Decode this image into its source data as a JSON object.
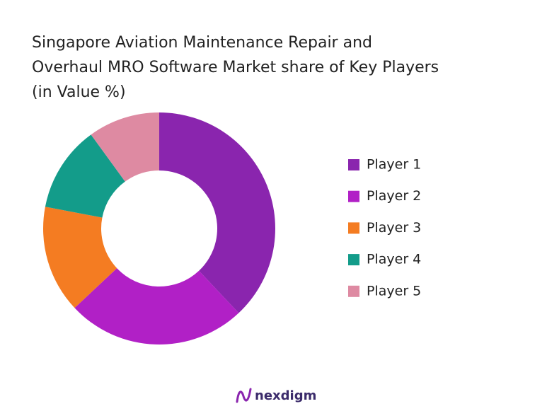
{
  "chart_data": {
    "type": "donut",
    "title": [
      "Singapore Aviation Maintenance Repair and",
      "Overhaul MRO Software Market share of Key Players",
      "(in Value %)"
    ],
    "categories": [
      "Player 1",
      "Player 2",
      "Player 3",
      "Player 4",
      "Player 5"
    ],
    "values": [
      38,
      25,
      15,
      12,
      10
    ],
    "colors": [
      "#8A25AE",
      "#B120C6",
      "#F47C22",
      "#139C8A",
      "#DE8AA2"
    ],
    "legend": "right"
  },
  "brand": "nexdigm"
}
